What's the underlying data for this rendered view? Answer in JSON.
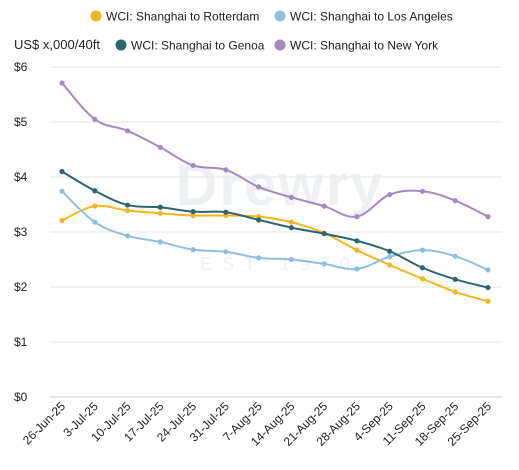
{
  "chart_data": {
    "type": "line",
    "ylabel": "US$ x,000/40ft",
    "ylim": [
      0,
      6
    ],
    "y_ticks": [
      {
        "value": 0,
        "label": "$0"
      },
      {
        "value": 1,
        "label": "$1"
      },
      {
        "value": 2,
        "label": "$2"
      },
      {
        "value": 3,
        "label": "$3"
      },
      {
        "value": 4,
        "label": "$4"
      },
      {
        "value": 5,
        "label": "$5"
      },
      {
        "value": 6,
        "label": "$6"
      }
    ],
    "categories": [
      "26-Jun-25",
      "3-Jul-25",
      "10-Jul-25",
      "17-Jul-25",
      "24-Jul-25",
      "31-Jul-25",
      "7-Aug-25",
      "14-Aug-25",
      "21-Aug-25",
      "28-Aug-25",
      "4-Sep-25",
      "11-Sep-25",
      "18-Sep-25",
      "25-Sep-25"
    ],
    "grid": true,
    "legend_position": "top",
    "watermark": {
      "main": "Drewry",
      "sub": "EST 1970"
    },
    "series": [
      {
        "name": "WCI: Shanghai to Rotterdam",
        "color": "#f2b61f",
        "values": [
          3.21,
          3.47,
          3.39,
          3.34,
          3.3,
          3.3,
          3.28,
          3.18,
          2.98,
          2.67,
          2.4,
          2.15,
          1.91,
          1.74
        ]
      },
      {
        "name": "WCI: Shanghai to Los Angeles",
        "color": "#8fbfe0",
        "values": [
          3.74,
          3.18,
          2.93,
          2.82,
          2.68,
          2.64,
          2.53,
          2.5,
          2.42,
          2.33,
          2.55,
          2.67,
          2.56,
          2.31
        ]
      },
      {
        "name": "WCI: Shanghai to Genoa",
        "color": "#2c6670",
        "values": [
          4.1,
          3.75,
          3.49,
          3.45,
          3.37,
          3.36,
          3.22,
          3.08,
          2.97,
          2.84,
          2.65,
          2.35,
          2.14,
          1.99
        ]
      },
      {
        "name": "WCI: Shanghai to New York",
        "color": "#a58ac2",
        "values": [
          5.71,
          5.05,
          4.84,
          4.54,
          4.21,
          4.13,
          3.82,
          3.63,
          3.47,
          3.28,
          3.68,
          3.74,
          3.57,
          3.28
        ]
      }
    ]
  }
}
